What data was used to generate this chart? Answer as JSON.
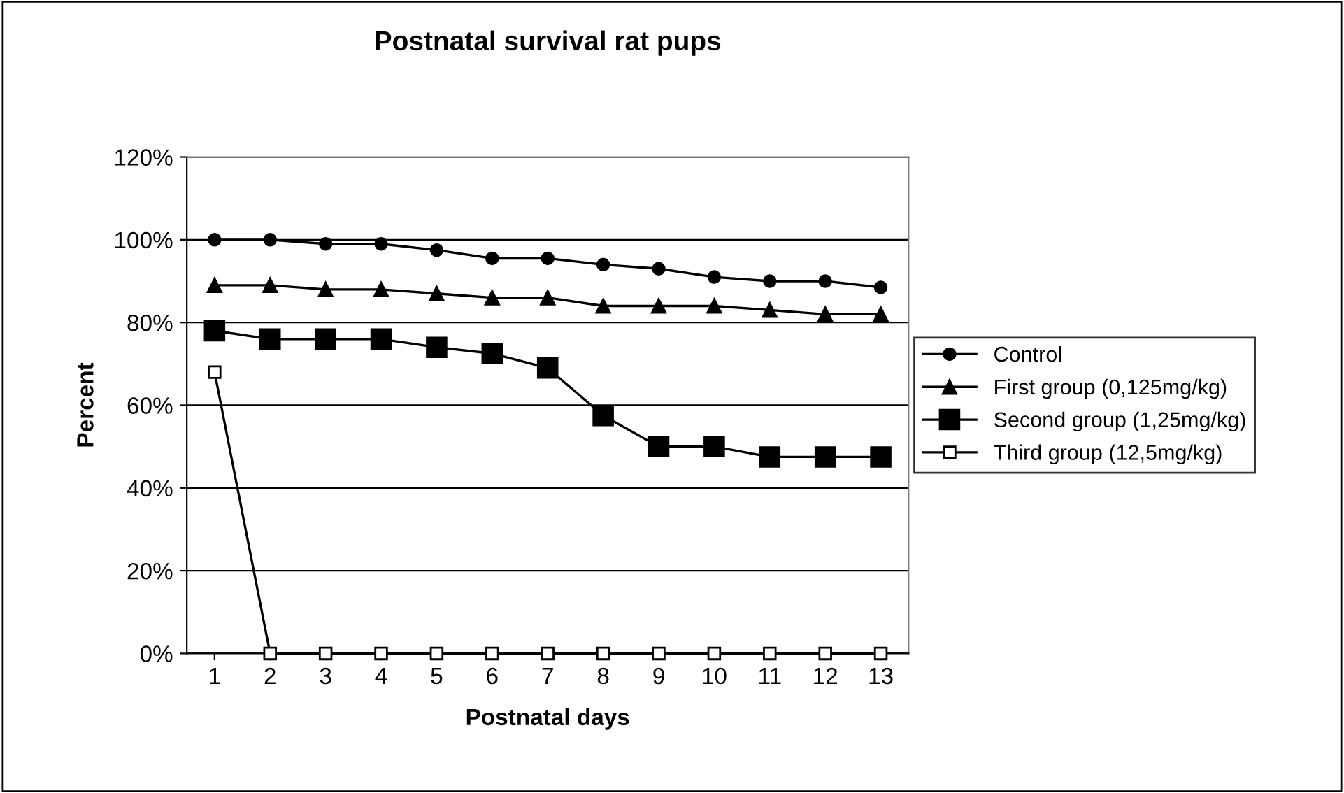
{
  "chart_data": {
    "type": "line",
    "title": "Postnatal survival rat pups",
    "xlabel": "Postnatal days",
    "ylabel": "Percent",
    "categories": [
      "1",
      "2",
      "3",
      "4",
      "5",
      "6",
      "7",
      "8",
      "9",
      "10",
      "11",
      "12",
      "13"
    ],
    "ylim": [
      0,
      120
    ],
    "yticks": [
      {
        "value": 0,
        "label": "0%"
      },
      {
        "value": 20,
        "label": "20%"
      },
      {
        "value": 40,
        "label": "40%"
      },
      {
        "value": 60,
        "label": "60%"
      },
      {
        "value": 80,
        "label": "80%"
      },
      {
        "value": 100,
        "label": "100%"
      },
      {
        "value": 120,
        "label": "120%"
      }
    ],
    "grid": "y",
    "legend": "right",
    "series": [
      {
        "name": "Control",
        "color": "#000000",
        "marker": "circle",
        "values": [
          100,
          100,
          99,
          99,
          97.5,
          95.5,
          95.5,
          94,
          93,
          91,
          90,
          90,
          88.5
        ]
      },
      {
        "name": "First group (0,125mg/kg)",
        "color": "#000000",
        "marker": "triangle",
        "values": [
          89,
          89,
          88,
          88,
          87,
          86,
          86,
          84,
          84,
          84,
          83,
          82,
          82
        ]
      },
      {
        "name": "Second group (1,25mg/kg)",
        "color": "#000000",
        "marker": "square",
        "values": [
          78,
          76,
          76,
          76,
          74,
          72.5,
          69,
          57.5,
          50,
          50,
          47.5,
          47.5,
          47.5
        ]
      },
      {
        "name": "Third group (12,5mg/kg)",
        "color": "#000000",
        "marker": "square",
        "values": [
          68,
          0,
          0,
          0,
          0,
          0,
          0,
          0,
          0,
          0,
          0,
          0,
          0
        ]
      }
    ]
  }
}
